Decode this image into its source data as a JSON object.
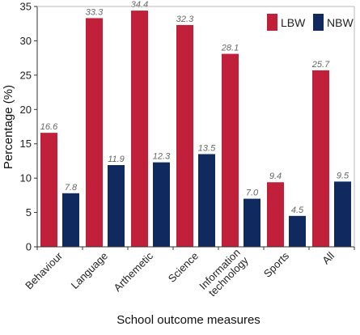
{
  "chart_data": {
    "type": "bar",
    "categories": [
      "Behaviour",
      "Language",
      "Arthemetic",
      "Science",
      "Information technology",
      "Sports",
      "All"
    ],
    "category_lines": [
      [
        "Behaviour"
      ],
      [
        "Language"
      ],
      [
        "Arthemetic"
      ],
      [
        "Science"
      ],
      [
        "Information",
        "technology"
      ],
      [
        "Sports"
      ],
      [
        "All"
      ]
    ],
    "series": [
      {
        "name": "LBW",
        "color": "#c0203a",
        "values": [
          16.6,
          33.3,
          34.4,
          32.3,
          28.1,
          9.4,
          25.7
        ],
        "labels": [
          "16.6",
          "33.3",
          "34.4",
          "32.3",
          "28.1",
          "9.4",
          "25.7"
        ]
      },
      {
        "name": "NBW",
        "color": "#102a60",
        "values": [
          7.8,
          11.9,
          12.3,
          13.5,
          7.0,
          4.5,
          9.5
        ],
        "labels": [
          "7.8",
          "11.9",
          "12.3",
          "13.5",
          "7.0",
          "4.5",
          "9.5"
        ]
      }
    ],
    "xlabel": "School outcome measures",
    "ylabel": "Percentage (%)",
    "ylim": [
      0,
      35
    ],
    "yticks": [
      "0",
      "5",
      "10",
      "15",
      "20",
      "25",
      "30",
      "35"
    ],
    "grid": false,
    "legend": "top-right"
  }
}
